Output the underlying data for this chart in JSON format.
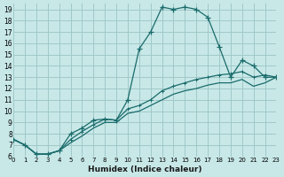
{
  "xlabel": "Humidex (Indice chaleur)",
  "bg_color": "#c8e8e8",
  "grid_color": "#a0c8c8",
  "line_color": "#1a6b6b",
  "xlim": [
    0,
    23
  ],
  "ylim": [
    6,
    19.5
  ],
  "xticks": [
    0,
    1,
    2,
    3,
    4,
    5,
    6,
    7,
    8,
    9,
    10,
    11,
    12,
    13,
    14,
    15,
    16,
    17,
    18,
    19,
    20,
    21,
    22,
    23
  ],
  "yticks": [
    6,
    7,
    8,
    9,
    10,
    11,
    12,
    13,
    14,
    15,
    16,
    17,
    18,
    19
  ],
  "line1_x": [
    0,
    1,
    2,
    3,
    4,
    5,
    6,
    7,
    8,
    9,
    10,
    11,
    12,
    13,
    14,
    15,
    16,
    17,
    18,
    19,
    20,
    21,
    22,
    23
  ],
  "line1_y": [
    7.5,
    7.0,
    6.2,
    6.2,
    6.5,
    8.0,
    8.5,
    9.2,
    9.3,
    9.2,
    11.0,
    15.5,
    17.0,
    19.2,
    19.0,
    19.2,
    19.0,
    18.3,
    15.7,
    13.0,
    14.5,
    14.0,
    13.0,
    13.0
  ],
  "line2_x": [
    0,
    1,
    2,
    3,
    4,
    5,
    6,
    7,
    8,
    9,
    10,
    11,
    12,
    13,
    14,
    15,
    16,
    17,
    18,
    19,
    20,
    21,
    22,
    23
  ],
  "line2_y": [
    7.5,
    7.0,
    6.2,
    6.2,
    6.5,
    7.5,
    8.2,
    8.8,
    9.3,
    9.2,
    10.2,
    10.5,
    11.0,
    11.8,
    12.2,
    12.5,
    12.8,
    13.0,
    13.2,
    13.3,
    13.5,
    13.0,
    13.2,
    13.0
  ],
  "line3_x": [
    0,
    1,
    2,
    3,
    4,
    5,
    6,
    7,
    8,
    9,
    10,
    11,
    12,
    13,
    14,
    15,
    16,
    17,
    18,
    19,
    20,
    21,
    22,
    23
  ],
  "line3_y": [
    7.5,
    7.0,
    6.2,
    6.2,
    6.5,
    7.2,
    7.8,
    8.5,
    9.0,
    9.0,
    9.8,
    10.0,
    10.5,
    11.0,
    11.5,
    11.8,
    12.0,
    12.3,
    12.5,
    12.5,
    12.8,
    12.2,
    12.5,
    13.0
  ]
}
